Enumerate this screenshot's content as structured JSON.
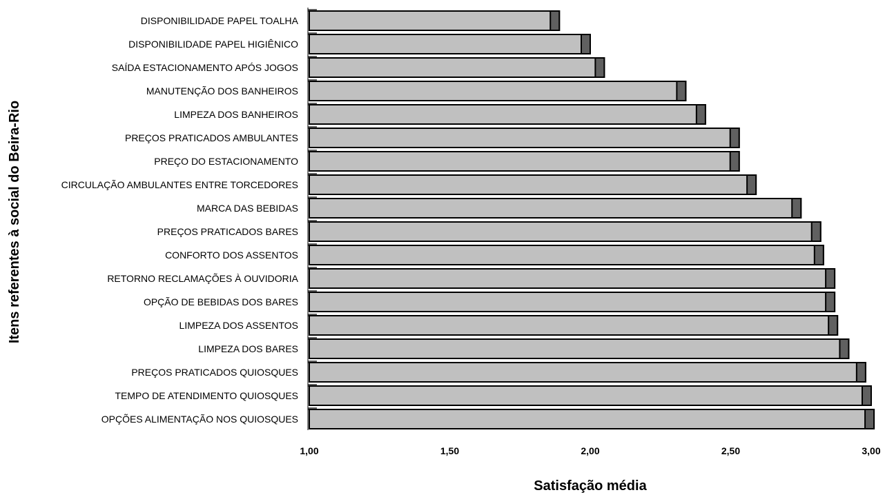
{
  "chart_data": {
    "type": "bar",
    "orientation": "horizontal",
    "xlabel": "Satisfação média",
    "ylabel": "Itens referentes à social do Beira-Rio",
    "xlim": [
      1.0,
      3.0
    ],
    "xticks": [
      "1,00",
      "1,50",
      "2,00",
      "2,50",
      "3,00"
    ],
    "xtick_values": [
      1.0,
      1.5,
      2.0,
      2.5,
      3.0
    ],
    "grid": false,
    "legend": "none",
    "colors": {
      "bar_fill": "#c0c0c0",
      "bar_cap": "#606060",
      "bar_stroke": "#000000"
    },
    "categories": [
      "DISPONIBILIDADE PAPEL TOALHA",
      "DISPONIBILIDADE PAPEL HIGIÊNICO",
      "SAÍDA ESTACIONAMENTO APÓS JOGOS",
      "MANUTENÇÃO DOS BANHEIROS",
      "LIMPEZA DOS BANHEIROS",
      "PREÇOS PRATICADOS AMBULANTES",
      "PREÇO DO ESTACIONAMENTO",
      "CIRCULAÇÃO AMBULANTES ENTRE TORCEDORES",
      "MARCA DAS BEBIDAS",
      "PREÇOS PRATICADOS BARES",
      "CONFORTO DOS ASSENTOS",
      "RETORNO RECLAMAÇÕES À OUVIDORIA",
      "OPÇÃO DE BEBIDAS DOS BARES",
      "LIMPEZA DOS ASSENTOS",
      "LIMPEZA DOS BARES",
      "PREÇOS PRATICADOS QUIOSQUES",
      "TEMPO DE ATENDIMENTO QUIOSQUES",
      "OPÇÕES ALIMENTAÇÃO NOS QUIOSQUES"
    ],
    "values": [
      1.89,
      2.0,
      2.05,
      2.34,
      2.41,
      2.53,
      2.53,
      2.59,
      2.75,
      2.82,
      2.83,
      2.87,
      2.87,
      2.88,
      2.92,
      2.98,
      3.0,
      3.01
    ]
  }
}
